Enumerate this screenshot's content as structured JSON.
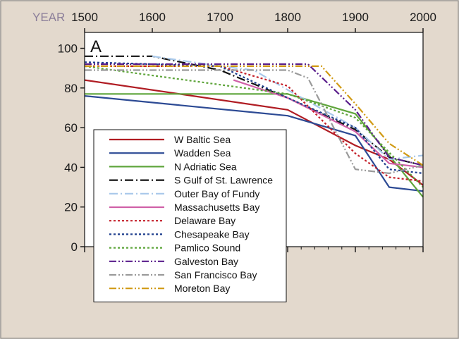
{
  "chart_data": {
    "type": "line",
    "panel_label": "A",
    "x_axis_label": "YEAR",
    "x_ticks": [
      1500,
      1600,
      1700,
      1800,
      1900,
      2000
    ],
    "y_ticks": [
      0,
      20,
      40,
      60,
      80,
      100
    ],
    "xlim": [
      1500,
      2000
    ],
    "ylim": [
      0,
      108
    ],
    "grid": false,
    "legend_position": "bottom-left",
    "colors": {
      "background": "#e3d9cd",
      "plot_background": "#ffffff",
      "legend_background": "#ffffff",
      "year_label": "#8c7f9a"
    },
    "series": [
      {
        "name": "W Baltic Sea",
        "color": "#b01c23",
        "dash": "solid",
        "points": [
          [
            1500,
            84
          ],
          [
            1800,
            69
          ],
          [
            1900,
            51
          ],
          [
            1950,
            44
          ],
          [
            2000,
            31
          ]
        ]
      },
      {
        "name": "Wadden Sea",
        "color": "#2c4a94",
        "dash": "solid",
        "points": [
          [
            1500,
            76
          ],
          [
            1800,
            66
          ],
          [
            1900,
            56
          ],
          [
            1950,
            30
          ],
          [
            2000,
            28
          ]
        ]
      },
      {
        "name": "N Adriatic Sea",
        "color": "#5fa53c",
        "dash": "solid",
        "points": [
          [
            1500,
            77
          ],
          [
            1800,
            77
          ],
          [
            1900,
            67
          ],
          [
            2000,
            25
          ]
        ]
      },
      {
        "name": "S Gulf of St. Lawrence",
        "color": "#111111",
        "dash": "dashdot",
        "points": [
          [
            1500,
            96
          ],
          [
            1600,
            96
          ],
          [
            1700,
            89
          ],
          [
            1800,
            75
          ],
          [
            1900,
            59
          ],
          [
            1950,
            45
          ],
          [
            2000,
            41
          ]
        ]
      },
      {
        "name": "Outer Bay of Fundy",
        "color": "#a8c8ea",
        "dash": "dashdot",
        "points": [
          [
            1600,
            96
          ],
          [
            1700,
            91
          ],
          [
            1750,
            89
          ],
          [
            1800,
            79
          ],
          [
            1900,
            60
          ],
          [
            1950,
            44
          ],
          [
            2000,
            46
          ]
        ]
      },
      {
        "name": "Massachusetts Bay",
        "color": "#d060a8",
        "dash": "solid",
        "points": [
          [
            1720,
            84
          ],
          [
            1800,
            75
          ],
          [
            1900,
            58
          ],
          [
            1950,
            42
          ],
          [
            2000,
            40
          ]
        ]
      },
      {
        "name": "Delaware Bay",
        "color": "#c4202a",
        "dash": "dotted",
        "points": [
          [
            1500,
            91
          ],
          [
            1700,
            91
          ],
          [
            1800,
            81
          ],
          [
            1900,
            47
          ],
          [
            1950,
            35
          ],
          [
            2000,
            33
          ]
        ]
      },
      {
        "name": "Chesapeake Bay",
        "color": "#1f3f8e",
        "dash": "dotted",
        "points": [
          [
            1500,
            93
          ],
          [
            1700,
            91
          ],
          [
            1800,
            75
          ],
          [
            1900,
            60
          ],
          [
            1950,
            39
          ],
          [
            2000,
            37
          ]
        ]
      },
      {
        "name": "Pamlico Sound",
        "color": "#5fa53c",
        "dash": "dotted",
        "points": [
          [
            1500,
            91
          ],
          [
            1800,
            77
          ],
          [
            1900,
            65
          ],
          [
            2000,
            30
          ]
        ]
      },
      {
        "name": "Galveston Bay",
        "color": "#5a1e8c",
        "dash": "dashdotdot",
        "points": [
          [
            1500,
            92
          ],
          [
            1830,
            92
          ],
          [
            1900,
            69
          ],
          [
            1950,
            45
          ],
          [
            2000,
            41
          ]
        ]
      },
      {
        "name": "San Francisco Bay",
        "color": "#9a9a9a",
        "dash": "dashdotdot",
        "points": [
          [
            1500,
            89
          ],
          [
            1800,
            89
          ],
          [
            1830,
            85
          ],
          [
            1900,
            39
          ],
          [
            1950,
            37
          ],
          [
            2000,
            41
          ]
        ]
      },
      {
        "name": "Moreton Bay",
        "color": "#d19a14",
        "dash": "dashdotdot",
        "points": [
          [
            1500,
            91
          ],
          [
            1850,
            91
          ],
          [
            1900,
            72
          ],
          [
            1950,
            52
          ],
          [
            2000,
            41
          ]
        ]
      }
    ]
  }
}
